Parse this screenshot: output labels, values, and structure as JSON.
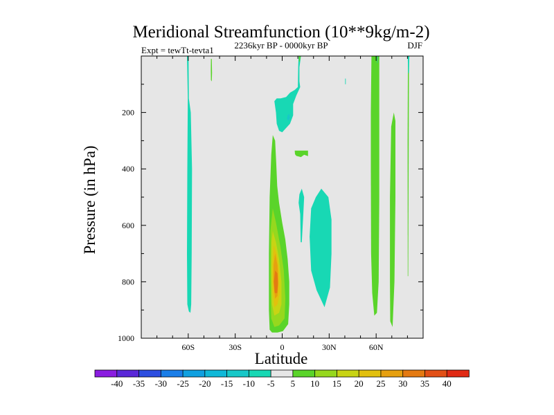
{
  "chart_data": {
    "type": "contour",
    "title": "Meridional Streamfunction (10**9kg/m-2)",
    "subtitle": "2236kyr BP - 0000kyr BP",
    "left_label": "Expt = tewTt-tevta1",
    "right_label": "DJF",
    "xlabel": "Latitude",
    "ylabel": "Pressure (in hPa)",
    "xlim": [
      -90,
      90
    ],
    "ylim": [
      0,
      1000
    ],
    "y_inverted": true,
    "x_ticks": [
      {
        "value": -60,
        "label": "60S"
      },
      {
        "value": -30,
        "label": "30S"
      },
      {
        "value": 0,
        "label": "0"
      },
      {
        "value": 30,
        "label": "30N"
      },
      {
        "value": 60,
        "label": "60N"
      }
    ],
    "y_ticks": [
      {
        "value": 200,
        "label": "200"
      },
      {
        "value": 400,
        "label": "400"
      },
      {
        "value": 600,
        "label": "600"
      },
      {
        "value": 800,
        "label": "800"
      },
      {
        "value": 1000,
        "label": "1000"
      }
    ],
    "colorbar": {
      "labels": [
        "-40",
        "-35",
        "-30",
        "-25",
        "-20",
        "-15",
        "-10",
        "-5",
        "5",
        "10",
        "15",
        "20",
        "25",
        "30",
        "35",
        "40"
      ],
      "colors": [
        "#8a1ce0",
        "#5a28d8",
        "#2d4ee0",
        "#1a7ee8",
        "#10a0e0",
        "#10b8d8",
        "#18c8c8",
        "#18d8b4",
        "#e6e6e6",
        "#5ad42a",
        "#96d81e",
        "#c8d414",
        "#e2c00e",
        "#e6a010",
        "#e47a12",
        "#e25016",
        "#e02a14"
      ],
      "neutral_color": "#e6e6e6"
    },
    "features": [
      {
        "name": "cyan-column-60s",
        "level": -5,
        "points": [
          [
            -60.8,
            0
          ],
          [
            -59.8,
            0
          ],
          [
            -59.6,
            150
          ],
          [
            -58.4,
            200
          ],
          [
            -57.6,
            400
          ],
          [
            -57.8,
            700
          ],
          [
            -58.1,
            880
          ],
          [
            -58.6,
            910
          ],
          [
            -59.6,
            905
          ],
          [
            -60.6,
            880
          ],
          [
            -60.8,
            700
          ],
          [
            -60.6,
            400
          ],
          [
            -60.3,
            150
          ]
        ]
      },
      {
        "name": "green-sliver-45s",
        "level": 5,
        "points": [
          [
            -45.5,
            10
          ],
          [
            -45.0,
            10
          ],
          [
            -44.8,
            60
          ],
          [
            -45.0,
            90
          ],
          [
            -45.5,
            85
          ],
          [
            -45.6,
            50
          ]
        ]
      },
      {
        "name": "green-equatorial-cell",
        "level": 5,
        "points": [
          [
            -6,
            280
          ],
          [
            -4.5,
            300
          ],
          [
            -3.8,
            380
          ],
          [
            -3.2,
            460
          ],
          [
            -2,
            520
          ],
          [
            0,
            590
          ],
          [
            2,
            650
          ],
          [
            3.5,
            720
          ],
          [
            4.5,
            800
          ],
          [
            4.5,
            880
          ],
          [
            3.8,
            950
          ],
          [
            0.5,
            975
          ],
          [
            -3,
            980
          ],
          [
            -6.5,
            980
          ],
          [
            -8,
            970
          ],
          [
            -8.5,
            900
          ],
          [
            -8.5,
            700
          ],
          [
            -8,
            500
          ],
          [
            -7,
            350
          ]
        ]
      },
      {
        "name": "yellowgreen-equatorial-core",
        "level": 10,
        "points": [
          [
            -6,
            540
          ],
          [
            -4,
            590
          ],
          [
            -1,
            680
          ],
          [
            1,
            760
          ],
          [
            2,
            860
          ],
          [
            1.5,
            930
          ],
          [
            -2,
            955
          ],
          [
            -5,
            960
          ],
          [
            -7,
            930
          ],
          [
            -7.5,
            800
          ],
          [
            -7.5,
            620
          ]
        ]
      },
      {
        "name": "yellow-equatorial-core",
        "level": 15,
        "points": [
          [
            -6,
            620
          ],
          [
            -4,
            660
          ],
          [
            -2,
            720
          ],
          [
            -0.5,
            800
          ],
          [
            -0.5,
            880
          ],
          [
            -2,
            910
          ],
          [
            -5,
            920
          ],
          [
            -6.5,
            880
          ],
          [
            -7,
            760
          ],
          [
            -6.8,
            660
          ]
        ]
      },
      {
        "name": "gold-equatorial-core",
        "level": 20,
        "points": [
          [
            -5.5,
            670
          ],
          [
            -3.5,
            700
          ],
          [
            -2,
            760
          ],
          [
            -1.5,
            840
          ],
          [
            -3,
            880
          ],
          [
            -5,
            890
          ],
          [
            -6,
            840
          ],
          [
            -6.2,
            740
          ]
        ]
      },
      {
        "name": "orange-equatorial-core",
        "level": 25,
        "points": [
          [
            -4.5,
            700
          ],
          [
            -3,
            740
          ],
          [
            -2.5,
            800
          ],
          [
            -3,
            850
          ],
          [
            -4.5,
            860
          ],
          [
            -5.6,
            800
          ],
          [
            -5.5,
            740
          ]
        ]
      },
      {
        "name": "dark-orange-equatorial-core",
        "level": 30,
        "points": [
          [
            -4.5,
            760
          ],
          [
            -3,
            770
          ],
          [
            -2.7,
            810
          ],
          [
            -3.2,
            840
          ],
          [
            -4.8,
            840
          ],
          [
            -5.3,
            800
          ]
        ]
      },
      {
        "name": "cyan-upper-equator",
        "level": -5,
        "points": [
          [
            10.5,
            0
          ],
          [
            12,
            0
          ],
          [
            11,
            40
          ],
          [
            11,
            90
          ],
          [
            11.5,
            110
          ],
          [
            9,
            140
          ],
          [
            7,
            170
          ],
          [
            7,
            210
          ],
          [
            5,
            240
          ],
          [
            0,
            270
          ],
          [
            -2,
            265
          ],
          [
            -3.5,
            240
          ],
          [
            -4,
            200
          ],
          [
            -5,
            160
          ],
          [
            -3.5,
            150
          ],
          [
            -1,
            150
          ],
          [
            2.5,
            145
          ],
          [
            5,
            130
          ],
          [
            8,
            120
          ],
          [
            10,
            110
          ],
          [
            10.2,
            40
          ]
        ]
      },
      {
        "name": "blue-upper-equator-spot",
        "level": -10,
        "points": [
          [
            3.5,
            210
          ],
          [
            4.5,
            205
          ],
          [
            5,
            220
          ],
          [
            4,
            230
          ],
          [
            3,
            222
          ]
        ]
      },
      {
        "name": "green-strip-upper-equator",
        "level": 5,
        "points": [
          [
            10.6,
            0
          ],
          [
            11.8,
            0
          ],
          [
            11.2,
            20
          ],
          [
            10.8,
            20
          ]
        ]
      },
      {
        "name": "green-blob-10n",
        "level": 5,
        "points": [
          [
            8,
            335
          ],
          [
            16.5,
            335
          ],
          [
            16.5,
            355
          ],
          [
            14,
            350
          ],
          [
            12,
            358
          ],
          [
            9,
            354
          ],
          [
            8.2,
            348
          ]
        ]
      },
      {
        "name": "cyan-filament-12n",
        "level": -5,
        "points": [
          [
            11,
            490
          ],
          [
            12.5,
            470
          ],
          [
            14,
            500
          ],
          [
            13.5,
            560
          ],
          [
            12.5,
            660
          ],
          [
            11.8,
            660
          ],
          [
            11.5,
            560
          ],
          [
            10.5,
            520
          ]
        ]
      },
      {
        "name": "cyan-tongue-25n",
        "level": -5,
        "points": [
          [
            25,
            470
          ],
          [
            29.5,
            500
          ],
          [
            31.5,
            580
          ],
          [
            31.5,
            700
          ],
          [
            30.5,
            820
          ],
          [
            27,
            890
          ],
          [
            22,
            830
          ],
          [
            18.5,
            760
          ],
          [
            17.5,
            640
          ],
          [
            18.5,
            540
          ],
          [
            21.5,
            500
          ]
        ]
      },
      {
        "name": "cyan-dot-40n",
        "level": -5,
        "points": [
          [
            40.2,
            80
          ],
          [
            40.6,
            80
          ],
          [
            40.6,
            100
          ],
          [
            40.2,
            100
          ]
        ]
      },
      {
        "name": "green-column-60n",
        "level": 5,
        "points": [
          [
            57,
            0
          ],
          [
            62,
            0
          ],
          [
            62,
            200
          ],
          [
            62,
            500
          ],
          [
            61.6,
            800
          ],
          [
            60.5,
            910
          ],
          [
            58.8,
            920
          ],
          [
            57.5,
            840
          ],
          [
            56.8,
            700
          ],
          [
            56.6,
            400
          ],
          [
            56.6,
            200
          ]
        ]
      },
      {
        "name": "green-column-72n",
        "level": 5,
        "points": [
          [
            71.3,
            200
          ],
          [
            72.3,
            230
          ],
          [
            72.3,
            500
          ],
          [
            71.7,
            800
          ],
          [
            70.5,
            960
          ],
          [
            69,
            940
          ],
          [
            68.8,
            800
          ],
          [
            68.8,
            500
          ],
          [
            69.6,
            250
          ]
        ]
      },
      {
        "name": "green-filament-80n",
        "level": 5,
        "points": [
          [
            80.3,
            0
          ],
          [
            81,
            0
          ],
          [
            80.8,
            300
          ],
          [
            80.5,
            780
          ],
          [
            80.2,
            780
          ],
          [
            80.1,
            300
          ]
        ]
      },
      {
        "name": "cyan-top-80n",
        "level": -5,
        "points": [
          [
            80.2,
            0
          ],
          [
            81.2,
            0
          ],
          [
            81,
            60
          ],
          [
            80.4,
            60
          ]
        ]
      },
      {
        "name": "dark-line-61n",
        "level": -10,
        "points": [
          [
            60.6,
            0
          ],
          [
            61,
            0
          ],
          [
            60.9,
            25
          ],
          [
            60.7,
            25
          ]
        ]
      }
    ]
  }
}
